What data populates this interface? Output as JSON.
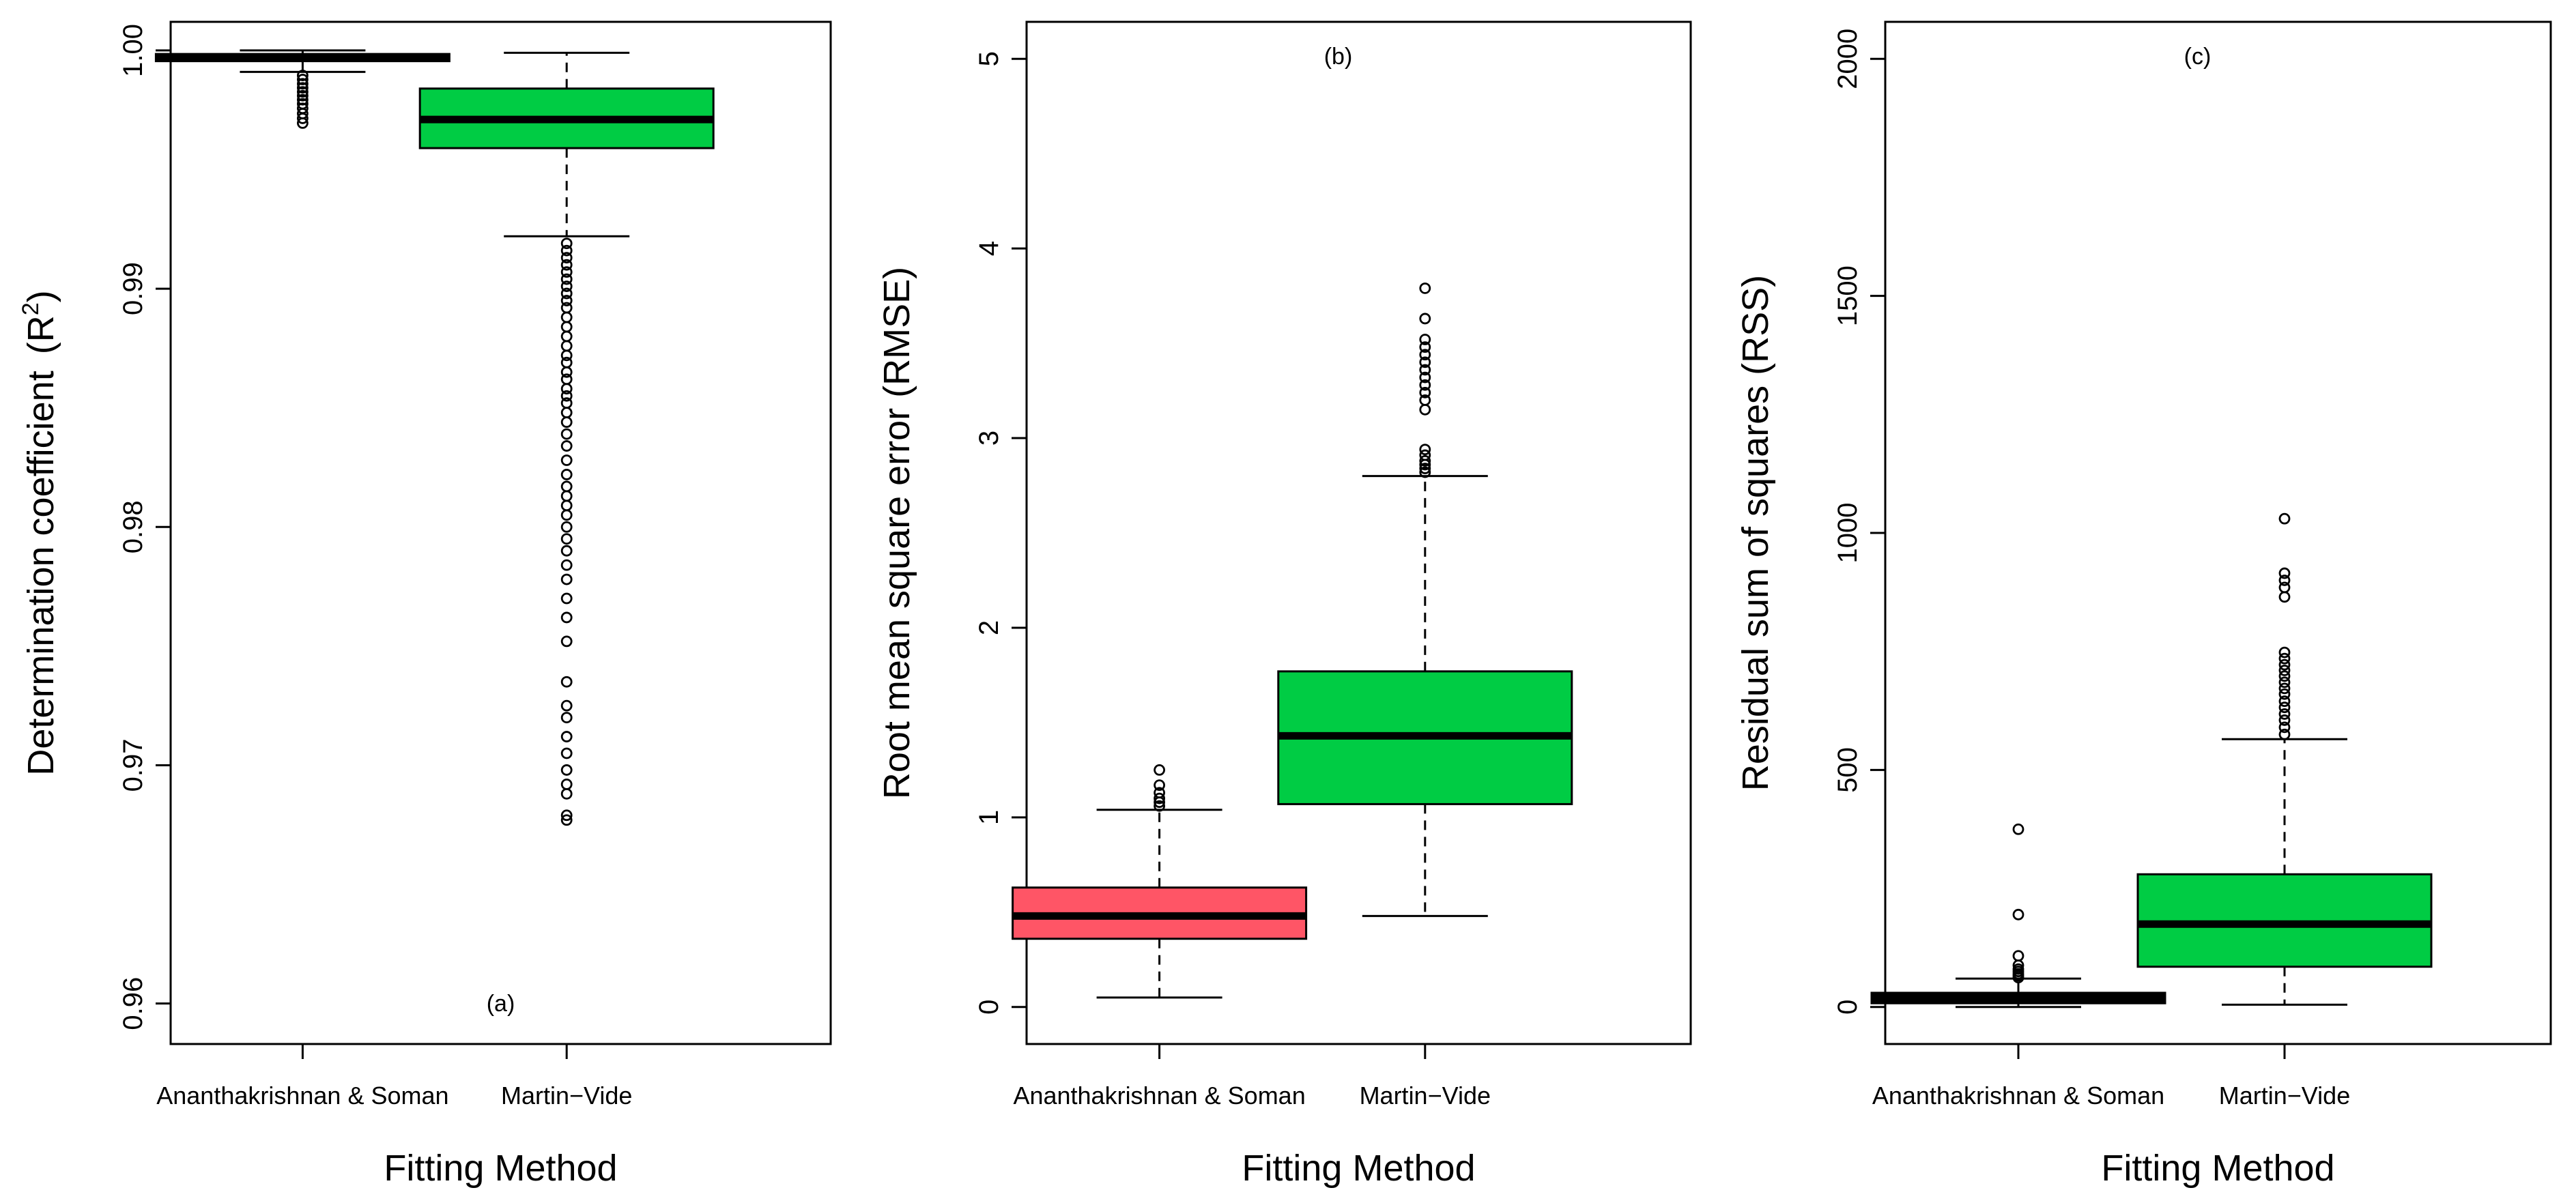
{
  "chart_data": [
    {
      "type": "boxplot",
      "panel_label": "(a)",
      "ylabel": "Determination coefficient",
      "ylabel_suffix": "(R",
      "ylabel_sup": "2",
      "ylabel_close": ")",
      "xlabel": "Fitting Method",
      "ylim": [
        0.9583,
        1.0012
      ],
      "yticks": [
        0.96,
        0.97,
        0.98,
        0.99,
        1.0
      ],
      "ytick_labels": [
        "0.96",
        "0.97",
        "0.98",
        "0.99",
        "1.00"
      ],
      "categories": [
        "Ananthakrishnan & Soman",
        "Martin−Vide"
      ],
      "colors": [
        "#000000",
        "#00cc44"
      ],
      "boxes": [
        {
          "name": "Ananthakrishnan & Soman",
          "whisker_low": 0.9991,
          "q1": 0.99955,
          "median": 0.99968,
          "q3": 0.99985,
          "whisker_high": 1.0,
          "outliers": [
            0.99895,
            0.99878,
            0.9986,
            0.99843,
            0.99826,
            0.9981,
            0.99793,
            0.99776,
            0.99757,
            0.99735,
            0.99715,
            0.99695
          ]
        },
        {
          "name": "Martin−Vide",
          "whisker_low": 0.9922,
          "q1": 0.9959,
          "median": 0.9971,
          "q3": 0.9984,
          "whisker_high": 0.9999,
          "outliers": [
            0.9919,
            0.9916,
            0.9913,
            0.991,
            0.9907,
            0.9904,
            0.9901,
            0.9898,
            0.9895,
            0.9892,
            0.9888,
            0.9884,
            0.988,
            0.9876,
            0.9872,
            0.9869,
            0.9865,
            0.9862,
            0.9858,
            0.9855,
            0.9852,
            0.9848,
            0.9844,
            0.9839,
            0.9834,
            0.9828,
            0.9822,
            0.9817,
            0.9813,
            0.9809,
            0.9805,
            0.98,
            0.9795,
            0.979,
            0.9784,
            0.9778,
            0.977,
            0.9762,
            0.9752,
            0.9735,
            0.9725,
            0.972,
            0.9712,
            0.9705,
            0.9698,
            0.9692,
            0.9688,
            0.9679,
            0.9677
          ]
        }
      ]
    },
    {
      "type": "boxplot",
      "panel_label": "(b)",
      "ylabel": "Root mean square error (RMSE)",
      "xlabel": "Fitting Method",
      "ylim": [
        -0.195,
        5.195
      ],
      "yticks": [
        0,
        1,
        2,
        3,
        4,
        5
      ],
      "ytick_labels": [
        "0",
        "1",
        "2",
        "3",
        "4",
        "5"
      ],
      "categories": [
        "Ananthakrishnan & Soman",
        "Martin−Vide"
      ],
      "colors": [
        "#ff5566",
        "#00cc44"
      ],
      "boxes": [
        {
          "name": "Ananthakrishnan & Soman",
          "whisker_low": 0.05,
          "q1": 0.36,
          "median": 0.48,
          "q3": 0.63,
          "whisker_high": 1.04,
          "outliers": [
            1.06,
            1.08,
            1.1,
            1.13,
            1.17,
            1.25
          ]
        },
        {
          "name": "Martin−Vide",
          "whisker_low": 0.48,
          "q1": 1.07,
          "median": 1.43,
          "q3": 1.77,
          "whisker_high": 2.8,
          "outliers": [
            2.82,
            2.84,
            2.86,
            2.88,
            2.91,
            2.94,
            3.15,
            3.2,
            3.24,
            3.28,
            3.32,
            3.36,
            3.4,
            3.44,
            3.48,
            3.52,
            3.63,
            3.79
          ]
        }
      ]
    },
    {
      "type": "boxplot",
      "panel_label": "(c)",
      "ylabel": "Residual sum of squares (RSS)",
      "xlabel": "Fitting Method",
      "ylim": [
        -78,
        2078
      ],
      "yticks": [
        0,
        500,
        1000,
        1500,
        2000
      ],
      "ytick_labels": [
        "0",
        "500",
        "1000",
        "1500",
        "2000"
      ],
      "categories": [
        "Ananthakrishnan & Soman",
        "Martin−Vide"
      ],
      "colors": [
        "#000000",
        "#00cc44"
      ],
      "boxes": [
        {
          "name": "Ananthakrishnan & Soman",
          "whisker_low": 0,
          "q1": 8,
          "median": 18,
          "q3": 30,
          "whisker_high": 60,
          "outliers": [
            62,
            66,
            70,
            75,
            80,
            88,
            108,
            195,
            375
          ]
        },
        {
          "name": "Martin−Vide",
          "whisker_low": 5,
          "q1": 85,
          "median": 175,
          "q3": 280,
          "whisker_high": 565,
          "outliers": [
            575,
            590,
            605,
            618,
            632,
            645,
            660,
            672,
            685,
            698,
            710,
            722,
            735,
            748,
            865,
            885,
            900,
            915,
            1030
          ]
        }
      ]
    }
  ]
}
